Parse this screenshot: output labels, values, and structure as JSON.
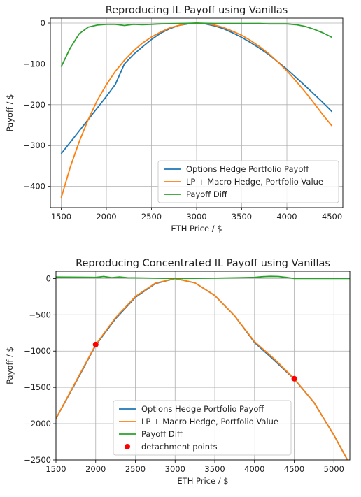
{
  "chart_data": [
    {
      "type": "line",
      "title": "Reproducing IL Payoff using Vanillas",
      "xlabel": "ETH Price / $",
      "ylabel": "Payoff / $",
      "xlim": [
        1380,
        4620
      ],
      "ylim": [
        -452,
        12
      ],
      "xticks": [
        1500,
        2000,
        2500,
        3000,
        3500,
        4000,
        4500
      ],
      "xtick_labels": [
        "1500",
        "2000",
        "2500",
        "3000",
        "3500",
        "4000",
        "4500"
      ],
      "yticks": [
        0,
        -100,
        -200,
        -300,
        -400
      ],
      "ytick_labels": [
        "0",
        "−100",
        "−200",
        "−300",
        "−400"
      ],
      "grid": true,
      "legend_position": "lower-right",
      "series": [
        {
          "name": "Options Hedge Portfolio Payoff",
          "color": "#1f77b4",
          "x": [
            1500,
            1600,
            1700,
            1800,
            1900,
            2000,
            2100,
            2200,
            2300,
            2400,
            2500,
            2600,
            2700,
            2800,
            2900,
            3000,
            3100,
            3200,
            3300,
            3400,
            3500,
            3600,
            3700,
            3800,
            3900,
            4000,
            4100,
            4200,
            4300,
            4400,
            4500
          ],
          "y": [
            -320,
            -292,
            -264,
            -236,
            -208,
            -180,
            -150,
            -100,
            -77,
            -58,
            -40,
            -25,
            -14,
            -6,
            -2,
            0,
            -2,
            -7,
            -14,
            -24,
            -35,
            -48,
            -62,
            -77,
            -95,
            -113,
            -133,
            -153,
            -174,
            -195,
            -217
          ]
        },
        {
          "name": "LP + Macro Hedge, Portfolio Value",
          "color": "#ff7f0e",
          "x": [
            1500,
            1600,
            1700,
            1800,
            1900,
            2000,
            2100,
            2200,
            2300,
            2400,
            2500,
            2600,
            2700,
            2800,
            2900,
            3000,
            3100,
            3200,
            3300,
            3400,
            3500,
            3600,
            3700,
            3800,
            3900,
            4000,
            4100,
            4200,
            4300,
            4400,
            4500
          ],
          "y": [
            -428,
            -353,
            -290,
            -236,
            -189,
            -151,
            -118,
            -91,
            -68,
            -49,
            -34,
            -22,
            -12,
            -6,
            -1,
            0,
            -1,
            -5,
            -11,
            -20,
            -30,
            -43,
            -58,
            -75,
            -95,
            -117,
            -142,
            -168,
            -196,
            -225,
            -252
          ]
        },
        {
          "name": "Payoff Diff",
          "color": "#2ca02c",
          "x": [
            1500,
            1600,
            1700,
            1800,
            1900,
            2000,
            2100,
            2200,
            2300,
            2400,
            2500,
            2600,
            2800,
            3000,
            3200,
            3400,
            3600,
            3700,
            3800,
            3900,
            4000,
            4100,
            4200,
            4300,
            4400,
            4500
          ],
          "y": [
            -107,
            -61,
            -26,
            -10,
            -5,
            -3,
            -3,
            -6,
            -3,
            -4,
            -3,
            -2,
            -1,
            0,
            -1,
            -1,
            -1,
            -1,
            -2,
            -2,
            -2,
            -4,
            -8,
            -15,
            -24,
            -35
          ]
        }
      ]
    },
    {
      "type": "line",
      "title": "Reproducing Concentrated IL Payoff using Vanillas",
      "xlabel": "ETH Price / $",
      "ylabel": "Payoff / $",
      "xlim": [
        1500,
        5200
      ],
      "ylim": [
        -2500,
        100
      ],
      "xticks": [
        1500,
        2000,
        2500,
        3000,
        3500,
        4000,
        4500,
        5000
      ],
      "xtick_labels": [
        "1500",
        "2000",
        "2500",
        "3000",
        "3500",
        "4000",
        "4500",
        "5000"
      ],
      "yticks": [
        0,
        -500,
        -1000,
        -1500,
        -2000,
        -2500
      ],
      "ytick_labels": [
        "0",
        "−500",
        "−1000",
        "−1500",
        "−2000",
        "−2500"
      ],
      "grid": true,
      "legend_position": "lower-center",
      "series": [
        {
          "name": "Options Hedge Portfolio Payoff",
          "color": "#1f77b4",
          "x": [
            1500,
            1750,
            2000,
            2250,
            2500,
            2750,
            3000,
            3250,
            3500,
            3750,
            4000,
            4250,
            4500,
            4750,
            5000,
            5200
          ],
          "y": [
            -1930,
            -1430,
            -920,
            -555,
            -260,
            -70,
            0,
            -60,
            -235,
            -515,
            -880,
            -1130,
            -1385,
            -1710,
            -2160,
            -2560
          ]
        },
        {
          "name": "LP + Macro Hedge, Portfolio Value",
          "color": "#ff7f0e",
          "x": [
            1500,
            1750,
            2000,
            2250,
            2500,
            2750,
            3000,
            3250,
            3500,
            3750,
            4000,
            4250,
            4500,
            4750,
            5000,
            5200
          ],
          "y": [
            -1930,
            -1420,
            -910,
            -540,
            -250,
            -65,
            0,
            -60,
            -235,
            -515,
            -870,
            -1110,
            -1380,
            -1710,
            -2160,
            -2560
          ]
        },
        {
          "name": "Payoff Diff",
          "color": "#2ca02c",
          "x": [
            1500,
            1800,
            2000,
            2100,
            2200,
            2300,
            2400,
            2600,
            3000,
            3500,
            3800,
            4000,
            4100,
            4200,
            4300,
            4400,
            4500,
            5200
          ],
          "y": [
            20,
            18,
            15,
            28,
            12,
            22,
            10,
            8,
            0,
            5,
            10,
            15,
            25,
            30,
            28,
            15,
            0,
            0
          ]
        }
      ],
      "markers": {
        "name": "detachment points",
        "color": "#ff0000",
        "x": [
          2000,
          4500
        ],
        "y": [
          -910,
          -1380
        ]
      }
    }
  ]
}
